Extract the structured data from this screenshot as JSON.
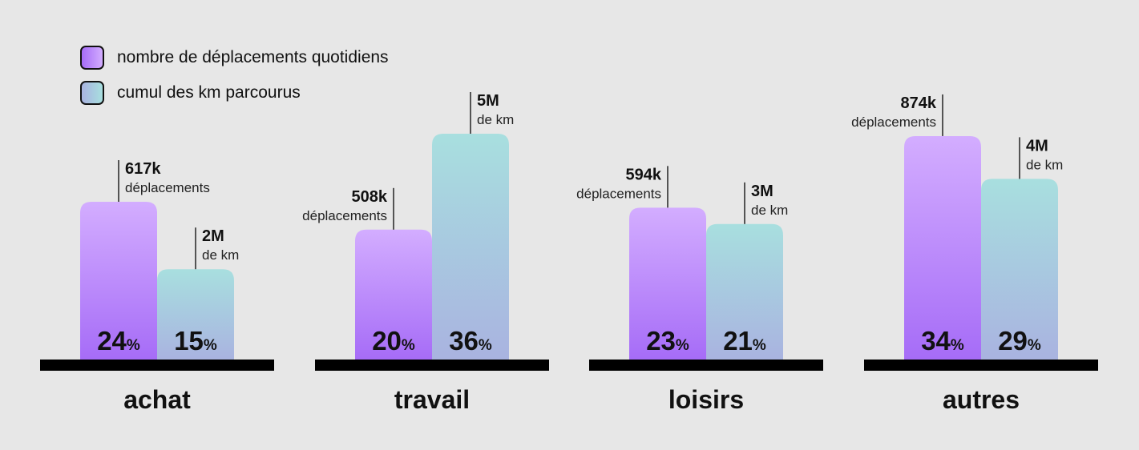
{
  "legend": [
    {
      "label": "nombre de déplacements quotidiens",
      "color_top": "#d3adff",
      "color_bottom": "#a66cf7"
    },
    {
      "label": "cumul des km parcourus",
      "color_top": "#a8dfdf",
      "color_bottom": "#a9b3e0"
    }
  ],
  "chart_data": {
    "type": "bar",
    "title": "",
    "categories": [
      "achat",
      "travail",
      "loisirs",
      "autres"
    ],
    "series": [
      {
        "name": "nombre de déplacements quotidiens",
        "values": [
          617000,
          508000,
          594000,
          874000
        ],
        "value_labels": [
          "617k",
          "508k",
          "594k",
          "874k"
        ],
        "value_units": "déplacements",
        "percent_labels": [
          "24",
          "20",
          "23",
          "34"
        ]
      },
      {
        "name": "cumul des km parcourus",
        "values": [
          2000000,
          5000000,
          3000000,
          4000000
        ],
        "value_labels": [
          "2M",
          "5M",
          "3M",
          "4M"
        ],
        "value_units": "de km",
        "percent_labels": [
          "15",
          "36",
          "21",
          "29"
        ]
      }
    ],
    "percent_symbol": "%",
    "grid": false,
    "legend_position": "top-left"
  }
}
